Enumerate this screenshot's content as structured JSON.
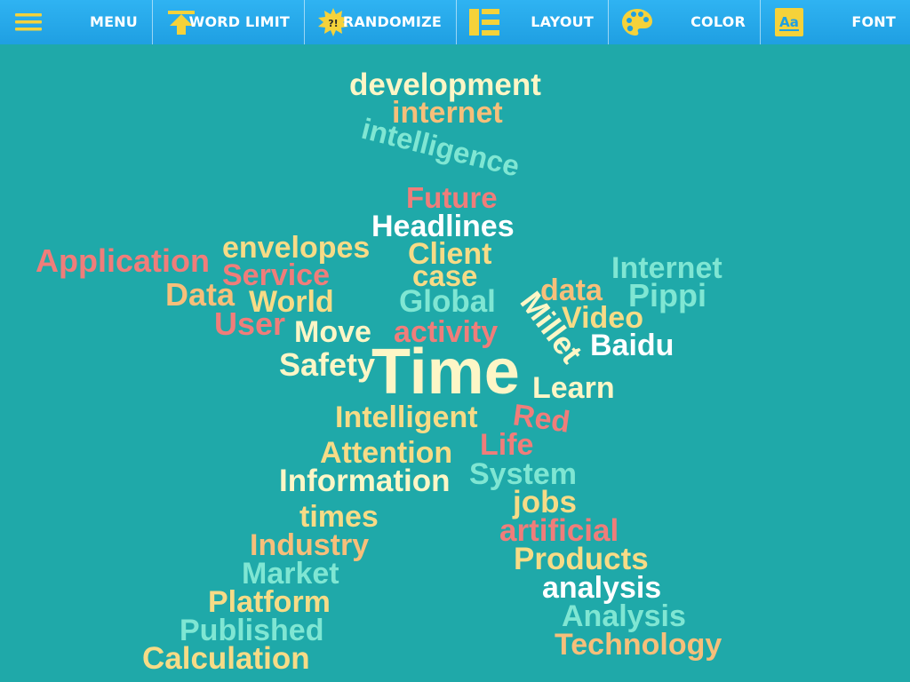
{
  "toolbar": {
    "menu_label": "MENU",
    "word_limit_label": "WORD LIMIT",
    "randomize_label": "RANDOMIZE",
    "randomize_icon_text": "?!",
    "layout_label": "LAYOUT",
    "color_label": "COLOR",
    "font_label": "FONT",
    "font_icon_text": "Aa",
    "icon_color": "#f5d23a"
  },
  "cloud": {
    "background": "#1fa9a9",
    "palette": {
      "cream": "#fdf6c6",
      "yellow": "#f7db86",
      "orange": "#f7bf7a",
      "salmon": "#f07d7a",
      "mint": "#7fe6d3",
      "white": "#ffffff"
    },
    "words": [
      {
        "text": "development",
        "color": "cream"
      },
      {
        "text": "internet",
        "color": "orange"
      },
      {
        "text": "intelligence",
        "color": "mint"
      },
      {
        "text": "Future",
        "color": "salmon"
      },
      {
        "text": "Headlines",
        "color": "white"
      },
      {
        "text": "envelopes",
        "color": "yellow"
      },
      {
        "text": "Client",
        "color": "yellow"
      },
      {
        "text": "Application",
        "color": "salmon"
      },
      {
        "text": "Service",
        "color": "salmon"
      },
      {
        "text": "case",
        "color": "yellow"
      },
      {
        "text": "Internet",
        "color": "mint"
      },
      {
        "text": "Data",
        "color": "orange"
      },
      {
        "text": "World",
        "color": "yellow"
      },
      {
        "text": "Global",
        "color": "mint"
      },
      {
        "text": "data",
        "color": "orange"
      },
      {
        "text": "Pippi",
        "color": "mint"
      },
      {
        "text": "Millet",
        "color": "cream"
      },
      {
        "text": "User",
        "color": "salmon"
      },
      {
        "text": "Video",
        "color": "yellow"
      },
      {
        "text": "Move",
        "color": "cream"
      },
      {
        "text": "activity",
        "color": "salmon"
      },
      {
        "text": "Baidu",
        "color": "white"
      },
      {
        "text": "Safety",
        "color": "cream"
      },
      {
        "text": "Time",
        "color": "cream"
      },
      {
        "text": "Learn",
        "color": "cream"
      },
      {
        "text": "Intelligent",
        "color": "yellow"
      },
      {
        "text": "Red",
        "color": "salmon"
      },
      {
        "text": "Life",
        "color": "salmon"
      },
      {
        "text": "Attention",
        "color": "yellow"
      },
      {
        "text": "System",
        "color": "mint"
      },
      {
        "text": "Information",
        "color": "cream"
      },
      {
        "text": "jobs",
        "color": "yellow"
      },
      {
        "text": "times",
        "color": "yellow"
      },
      {
        "text": "artificial",
        "color": "salmon"
      },
      {
        "text": "Industry",
        "color": "orange"
      },
      {
        "text": "Products",
        "color": "yellow"
      },
      {
        "text": "Market",
        "color": "mint"
      },
      {
        "text": "analysis",
        "color": "white"
      },
      {
        "text": "Platform",
        "color": "yellow"
      },
      {
        "text": "Analysis",
        "color": "mint"
      },
      {
        "text": "Published",
        "color": "mint"
      },
      {
        "text": "Technology",
        "color": "orange"
      },
      {
        "text": "Calculation",
        "color": "yellow"
      }
    ]
  }
}
